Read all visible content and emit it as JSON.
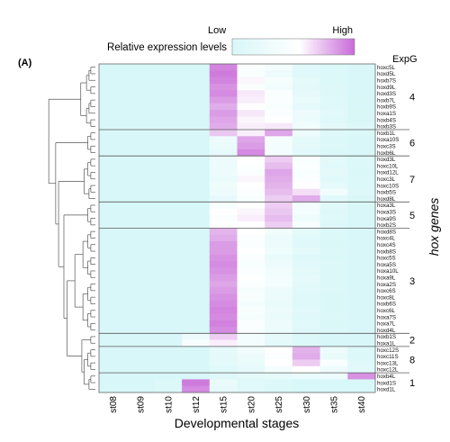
{
  "chart_data": {
    "type": "heatmap",
    "panel_label": "(A)",
    "legend": {
      "title": "Relative expression levels",
      "low_label": "Low",
      "high_label": "High",
      "low_color": "#d8f7f8",
      "mid_color": "#ffffff",
      "high_color": "#c86ad8"
    },
    "xlabel": "Developmental stages",
    "ylabel": "hox genes",
    "group_header": "ExpG",
    "x": [
      "st08",
      "st09",
      "st10",
      "st12",
      "st15",
      "st20",
      "st25",
      "st30",
      "st35",
      "st40"
    ],
    "groups": [
      {
        "id": "4",
        "rows": [
          "hoxc5L",
          "hoxd5L",
          "hoxb7S",
          "hoxd9L",
          "hoxd3S",
          "hoxb7L",
          "hoxb9S",
          "hoxa1S",
          "hoxb4S",
          "hoxb3S"
        ]
      },
      {
        "id": "6",
        "rows": [
          "hoxb1L",
          "hoxa10S",
          "hoxc3S",
          "hoxb6L"
        ]
      },
      {
        "id": "7",
        "rows": [
          "hoxd3L",
          "hoxc10L",
          "hoxd12L",
          "hoxc3L",
          "hoxc10S",
          "hoxb5S",
          "hoxd8L"
        ]
      },
      {
        "id": "5",
        "rows": [
          "hoxa3L",
          "hoxa3S",
          "hoxa9S",
          "hoxb2S"
        ]
      },
      {
        "id": "3",
        "rows": [
          "hoxd8S",
          "hoxc4L",
          "hoxc4S",
          "hoxb8S",
          "hoxc5S",
          "hoxa5S",
          "hoxa10L",
          "hoxa9L",
          "hoxa2S",
          "hoxc6S",
          "hoxc8L",
          "hoxb6S",
          "hoxc6L",
          "hoxa7S",
          "hoxa7L",
          "hoxd4L"
        ]
      },
      {
        "id": "2",
        "rows": [
          "hoxb1S",
          "hoxa1L"
        ]
      },
      {
        "id": "8",
        "rows": [
          "hoxc12S",
          "hoxc11S",
          "hoxc13L",
          "hoxc12L"
        ]
      },
      {
        "id": "1",
        "rows": [
          "hoxb4L",
          "hoxd1S",
          "hoxd1L"
        ]
      }
    ],
    "values": [
      [
        0,
        0,
        0,
        0,
        0.92,
        0.5,
        0.38,
        0.12,
        0.05,
        0.02
      ],
      [
        0,
        0,
        0,
        0,
        0.95,
        0.45,
        0.3,
        0.1,
        0.05,
        0.02
      ],
      [
        0,
        0,
        0,
        0,
        0.92,
        0.58,
        0.42,
        0.18,
        0.05,
        0.02
      ],
      [
        0,
        0,
        0,
        0,
        0.88,
        0.5,
        0.35,
        0.15,
        0.08,
        0.02
      ],
      [
        0,
        0,
        0,
        0,
        0.9,
        0.62,
        0.5,
        0.2,
        0.08,
        0.02
      ],
      [
        0,
        0,
        0,
        0,
        0.85,
        0.6,
        0.5,
        0.25,
        0.1,
        0.03
      ],
      [
        0,
        0,
        0,
        0,
        0.8,
        0.55,
        0.45,
        0.2,
        0.1,
        0.02
      ],
      [
        0,
        0,
        0,
        0,
        0.85,
        0.62,
        0.5,
        0.3,
        0.12,
        0.03
      ],
      [
        0,
        0,
        0,
        0,
        0.82,
        0.58,
        0.55,
        0.28,
        0.1,
        0.03
      ],
      [
        0,
        0,
        0,
        0,
        0.8,
        0.6,
        0.62,
        0.35,
        0.15,
        0.05
      ],
      [
        0,
        0,
        0,
        0,
        0.72,
        0.6,
        0.82,
        0.3,
        0.1,
        0.05
      ],
      [
        0,
        0,
        0,
        0,
        0.3,
        0.82,
        0.42,
        0.18,
        0.05,
        0.02
      ],
      [
        0,
        0,
        0,
        0,
        0.25,
        0.85,
        0.4,
        0.15,
        0.05,
        0.02
      ],
      [
        0,
        0,
        0,
        0,
        0.2,
        0.9,
        0.38,
        0.12,
        0.04,
        0.02
      ],
      [
        0,
        0,
        0,
        0,
        0.3,
        0.55,
        0.7,
        0.45,
        0.15,
        0.05
      ],
      [
        0,
        0,
        0,
        0,
        0.28,
        0.52,
        0.75,
        0.48,
        0.12,
        0.05
      ],
      [
        0,
        0,
        0,
        0,
        0.3,
        0.5,
        0.82,
        0.45,
        0.15,
        0.04
      ],
      [
        0,
        0,
        0,
        0,
        0.25,
        0.58,
        0.8,
        0.5,
        0.12,
        0.05
      ],
      [
        0,
        0,
        0,
        0,
        0.32,
        0.55,
        0.78,
        0.55,
        0.18,
        0.06
      ],
      [
        0,
        0,
        0,
        0,
        0.3,
        0.5,
        0.75,
        0.65,
        0.35,
        0.08
      ],
      [
        0,
        0,
        0,
        0,
        0.2,
        0.45,
        0.7,
        0.8,
        0.12,
        0.03
      ],
      [
        0,
        0,
        0,
        0,
        0.45,
        0.55,
        0.7,
        0.4,
        0.12,
        0.03
      ],
      [
        0,
        0,
        0,
        0,
        0.55,
        0.58,
        0.72,
        0.38,
        0.08,
        0.02
      ],
      [
        0,
        0,
        0,
        0,
        0.5,
        0.6,
        0.75,
        0.32,
        0.1,
        0.02
      ],
      [
        0,
        0,
        0,
        0,
        0.52,
        0.55,
        0.7,
        0.42,
        0.08,
        0.02
      ],
      [
        0,
        0,
        0,
        0,
        0.78,
        0.55,
        0.35,
        0.15,
        0.05,
        0.02
      ],
      [
        0,
        0,
        0,
        0,
        0.8,
        0.5,
        0.3,
        0.12,
        0.05,
        0.02
      ],
      [
        0,
        0,
        0,
        0,
        0.85,
        0.48,
        0.28,
        0.1,
        0.04,
        0.02
      ],
      [
        0,
        0,
        0,
        0,
        0.85,
        0.55,
        0.32,
        0.15,
        0.05,
        0.02
      ],
      [
        0,
        0,
        0,
        0,
        0.88,
        0.5,
        0.25,
        0.1,
        0.04,
        0.02
      ],
      [
        0,
        0,
        0,
        0,
        0.9,
        0.45,
        0.3,
        0.12,
        0.05,
        0.02
      ],
      [
        0,
        0,
        0,
        0,
        0.88,
        0.5,
        0.35,
        0.15,
        0.05,
        0.02
      ],
      [
        0,
        0,
        0,
        0,
        0.85,
        0.52,
        0.4,
        0.2,
        0.05,
        0.02
      ],
      [
        0,
        0,
        0,
        0,
        0.82,
        0.5,
        0.38,
        0.15,
        0.05,
        0.02
      ],
      [
        0,
        0,
        0,
        0,
        0.85,
        0.42,
        0.3,
        0.12,
        0.05,
        0.02
      ],
      [
        0,
        0,
        0,
        0,
        0.88,
        0.45,
        0.28,
        0.1,
        0.04,
        0.02
      ],
      [
        0,
        0,
        0,
        0,
        0.9,
        0.4,
        0.25,
        0.1,
        0.04,
        0.02
      ],
      [
        0,
        0,
        0,
        0,
        0.92,
        0.45,
        0.3,
        0.12,
        0.04,
        0.02
      ],
      [
        0,
        0,
        0,
        0,
        0.9,
        0.42,
        0.25,
        0.1,
        0.05,
        0.02
      ],
      [
        0,
        0,
        0,
        0,
        0.93,
        0.48,
        0.3,
        0.12,
        0.04,
        0.02
      ],
      [
        0,
        0,
        0,
        0,
        0.9,
        0.45,
        0.28,
        0.1,
        0.05,
        0.02
      ],
      [
        0,
        0,
        0,
        0.3,
        0.7,
        0.4,
        0.2,
        0.05,
        0,
        0
      ],
      [
        0,
        0,
        0,
        0.45,
        0.6,
        0.4,
        0.15,
        0.05,
        0,
        0
      ],
      [
        0,
        0,
        0,
        0,
        0.2,
        0.35,
        0.55,
        0.78,
        0.3,
        0.05
      ],
      [
        0,
        0,
        0,
        0,
        0.15,
        0.3,
        0.5,
        0.8,
        0.25,
        0.05
      ],
      [
        0,
        0,
        0,
        0,
        0.15,
        0.25,
        0.55,
        0.7,
        0.45,
        0.1
      ],
      [
        0,
        0,
        0,
        0,
        0.1,
        0.2,
        0.4,
        0.55,
        0.3,
        0.12
      ],
      [
        0,
        0,
        0,
        0,
        0.1,
        0.15,
        0.2,
        0.25,
        0.3,
        0.88
      ],
      [
        0,
        0,
        0.05,
        0.95,
        0.25,
        0.1,
        0.05,
        0,
        0,
        0
      ],
      [
        0,
        0,
        0.05,
        0.9,
        0.2,
        0.1,
        0.05,
        0,
        0,
        0
      ]
    ]
  }
}
